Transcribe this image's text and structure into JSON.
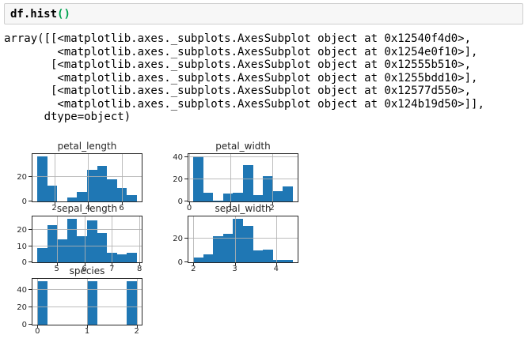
{
  "cell": {
    "code_main": "df.hist",
    "code_parens": "()"
  },
  "output_text": {
    "lines": [
      "array([[<matplotlib.axes._subplots.AxesSubplot object at 0x12540f4d0>,",
      "        <matplotlib.axes._subplots.AxesSubplot object at 0x1254e0f10>],",
      "       [<matplotlib.axes._subplots.AxesSubplot object at 0x12555b510>,",
      "        <matplotlib.axes._subplots.AxesSubplot object at 0x1255bdd10>],",
      "       [<matplotlib.axes._subplots.AxesSubplot object at 0x12577d550>,",
      "        <matplotlib.axes._subplots.AxesSubplot object at 0x124b19d50>]],",
      "      dtype=object)"
    ]
  },
  "chart_data": [
    {
      "type": "bar",
      "subtype": "histogram",
      "title": "petal_length",
      "bin_min": 1.0,
      "bin_max": 6.9,
      "counts": [
        37,
        13,
        0,
        3,
        8,
        26,
        29,
        18,
        11,
        5
      ],
      "xlim": [
        0.705,
        7.195
      ],
      "ylim": [
        0,
        38.85
      ],
      "xticks": [
        2,
        4,
        6
      ],
      "yticks": [
        0,
        20
      ],
      "grid": true,
      "legend": "none"
    },
    {
      "type": "bar",
      "subtype": "histogram",
      "title": "petal_width",
      "bin_min": 0.1,
      "bin_max": 2.5,
      "counts": [
        41,
        8,
        1,
        7,
        8,
        33,
        6,
        23,
        9,
        14
      ],
      "xlim": [
        -0.02,
        2.62
      ],
      "ylim": [
        0,
        43.05
      ],
      "xticks": [
        0,
        1,
        2
      ],
      "yticks": [
        0,
        20,
        40
      ],
      "grid": true,
      "legend": "none"
    },
    {
      "type": "bar",
      "subtype": "histogram",
      "title": "sepal_length",
      "bin_min": 4.3,
      "bin_max": 7.9,
      "counts": [
        9,
        23,
        14,
        27,
        16,
        26,
        18,
        6,
        5,
        6
      ],
      "xlim": [
        4.12,
        8.08
      ],
      "ylim": [
        0,
        28.35
      ],
      "xticks": [
        5,
        6,
        7,
        8
      ],
      "yticks": [
        0,
        10,
        20
      ],
      "grid": true,
      "legend": "none"
    },
    {
      "type": "bar",
      "subtype": "histogram",
      "title": "sepal_width",
      "bin_min": 2.0,
      "bin_max": 4.4,
      "counts": [
        4,
        7,
        22,
        24,
        37,
        31,
        10,
        11,
        2,
        2
      ],
      "xlim": [
        1.88,
        4.52
      ],
      "ylim": [
        0,
        38.85
      ],
      "xticks": [
        2,
        3,
        4
      ],
      "yticks": [
        0,
        20
      ],
      "grid": true,
      "legend": "none"
    },
    {
      "type": "bar",
      "subtype": "histogram",
      "title": "species",
      "bin_min": 0.0,
      "bin_max": 2.0,
      "counts": [
        50,
        0,
        0,
        0,
        0,
        50,
        0,
        0,
        0,
        50
      ],
      "xlim": [
        -0.1,
        2.1
      ],
      "ylim": [
        0,
        52.5
      ],
      "xticks": [
        0,
        1,
        2
      ],
      "yticks": [
        0,
        20,
        40
      ],
      "grid": true,
      "legend": "none"
    }
  ],
  "colors": {
    "bar_fill": "#1f77b4",
    "grid_line": "#b2b2b2",
    "axis_spine": "#262626",
    "tick_text": "#262626",
    "code_paren_green": "#00a250",
    "cell_background": "#f7f7f7",
    "cell_border": "#cfcfcf"
  }
}
